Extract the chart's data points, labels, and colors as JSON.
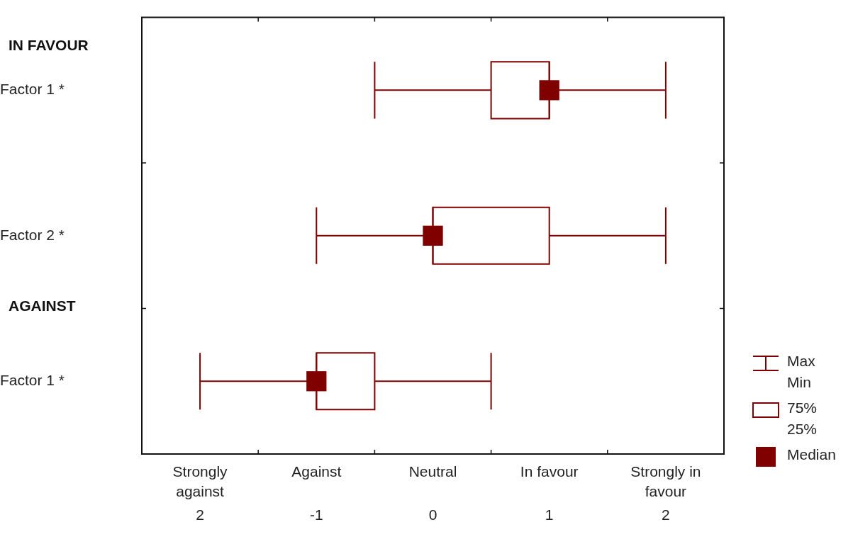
{
  "chart_data": {
    "type": "box",
    "orientation": "horizontal",
    "color": "#800000",
    "categories": [
      "Factor 1 *",
      "Factor 2 *",
      "Factor 1 *"
    ],
    "boxes": [
      {
        "low": -0.5,
        "q1": 0.5,
        "median": 1,
        "q3": 1,
        "high": 2
      },
      {
        "low": -1,
        "q1": 0,
        "median": 0,
        "q3": 1,
        "high": 2
      },
      {
        "low": -2,
        "q1": -1,
        "median": -1,
        "q3": -0.5,
        "high": 0.5
      }
    ],
    "series": [
      {
        "type": "scatter",
        "marker": "square",
        "color": "#800000",
        "values": [
          1,
          0,
          -1
        ]
      }
    ],
    "xlim": [
      -2.5,
      2.5
    ],
    "xticks": [
      {
        "value": -2,
        "label": "2"
      },
      {
        "value": -1.5,
        "label": null
      },
      -1,
      {
        "value": -0.5,
        "label": null
      },
      0,
      {
        "value": 0.5,
        "label": null
      },
      1,
      {
        "value": 1.5,
        "label": null
      },
      {
        "value": 2,
        "label": "2"
      }
    ],
    "annotations": [
      "IN FAVOUR",
      "AGAINST",
      "Max",
      "Min",
      "75%",
      "25%",
      "Median",
      "Strongly against",
      "Against",
      "Neutral",
      "In favour",
      "Strongly in favour"
    ]
  }
}
